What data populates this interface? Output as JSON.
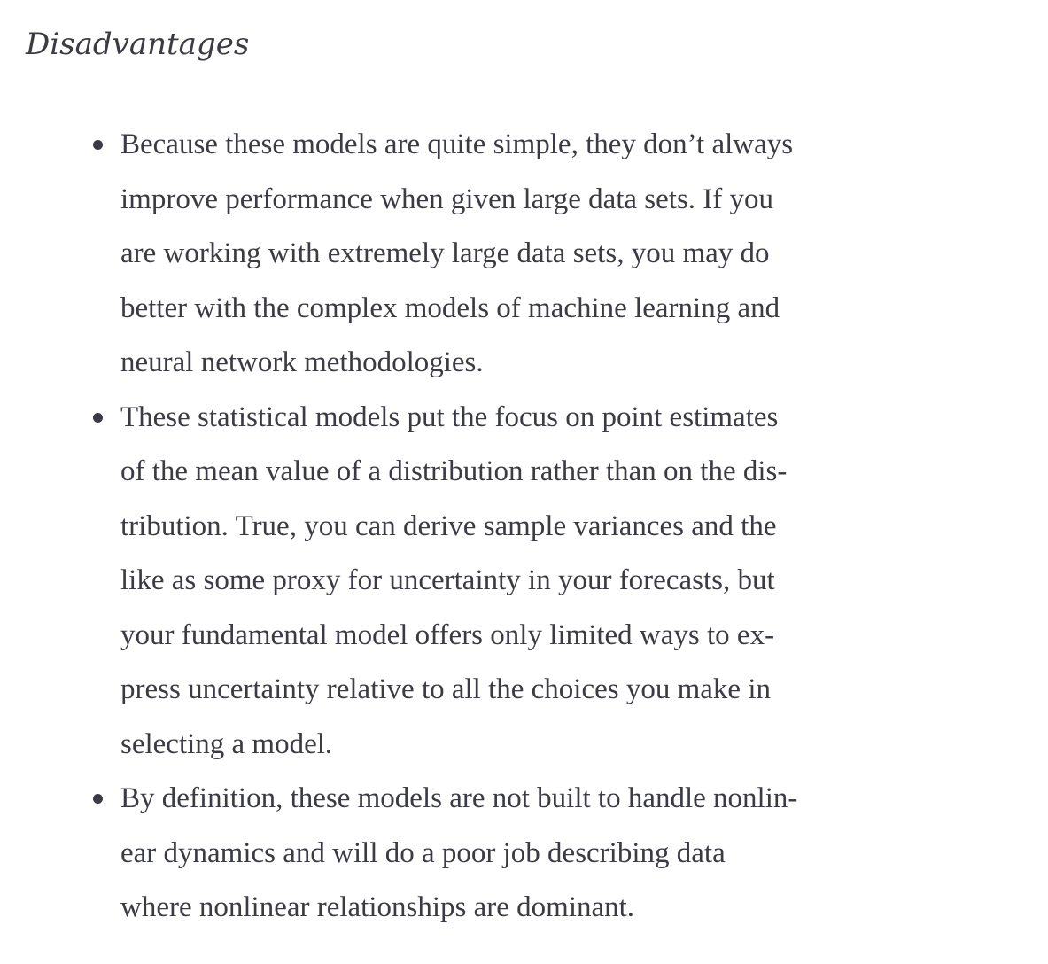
{
  "section": {
    "heading": "Disadvantages"
  },
  "items": [
    {
      "lines": [
        "Because these models are quite simple, they don’t always",
        "improve performance when given large data sets. If you",
        "are working with extremely large data sets, you may do",
        "better with the complex models of machine learning and",
        "neural network methodologies."
      ]
    },
    {
      "lines": [
        "These statistical models put the focus on point estimates",
        "of the mean value of a distribution rather than on the dis-",
        "tribution. True, you can derive sample variances and the",
        "like as some proxy for uncertainty in your forecasts, but",
        "your fundamental model offers only limited ways to ex-",
        "press uncertainty relative to all the choices you make in",
        "selecting a model."
      ]
    },
    {
      "lines": [
        "By definition, these models are not built to handle nonlin-",
        "ear dynamics and will do a poor job describing data",
        "where nonlinear relationships are dominant."
      ]
    }
  ]
}
